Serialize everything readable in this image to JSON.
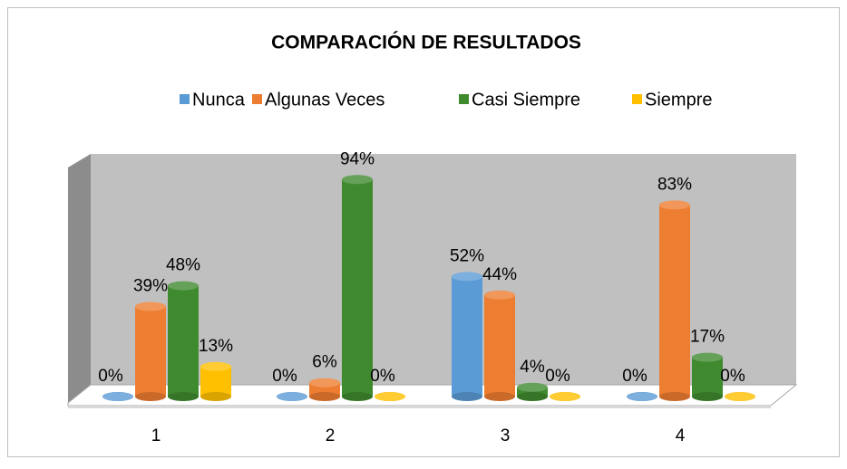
{
  "chart_data": {
    "type": "bar3d",
    "title": "COMPARACIÓN DE RESULTADOS",
    "categories": [
      "1",
      "2",
      "3",
      "4"
    ],
    "series": [
      {
        "name": "Nunca",
        "color": "#5b9bd5",
        "values": [
          0,
          0,
          52,
          0
        ],
        "value_labels": [
          "0%",
          "0%",
          "52%",
          "0%"
        ]
      },
      {
        "name": "Algunas Veces",
        "color": "#ed7d31",
        "values": [
          39,
          6,
          44,
          83
        ],
        "value_labels": [
          "39%",
          "6%",
          "44%",
          "83%"
        ]
      },
      {
        "name": "Casi Siempre",
        "color": "#3f8a2e",
        "values": [
          48,
          94,
          4,
          17
        ],
        "value_labels": [
          "48%",
          "94%",
          "4%",
          "17%"
        ]
      },
      {
        "name": "Siempre",
        "color": "#ffc000",
        "values": [
          13,
          0,
          0,
          0
        ],
        "value_labels": [
          "13%",
          "0%",
          "0%",
          "0%"
        ]
      }
    ],
    "ylim": [
      0,
      100
    ],
    "legend": "top"
  }
}
